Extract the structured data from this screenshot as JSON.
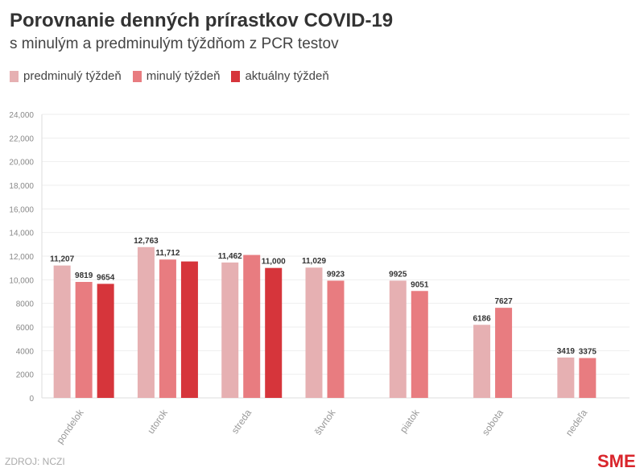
{
  "chart_data": {
    "type": "bar",
    "title": "Porovnanie denných prírastkov COVID-19",
    "subtitle": "s minulým a predminulým týždňom z PCR testov",
    "categories": [
      "pondelok",
      "utorok",
      "streda",
      "štvrtok",
      "piatok",
      "sobota",
      "nedeľa"
    ],
    "series": [
      {
        "name": "predminulý týždeň",
        "color": "#e6b0b2",
        "values": [
          11207,
          12763,
          11462,
          11029,
          9925,
          6186,
          3419
        ],
        "labels": [
          "11,207",
          "12,763",
          "11,462",
          "11,029",
          "9925",
          "6186",
          "3419"
        ]
      },
      {
        "name": "minulý týždeň",
        "color": "#e87c80",
        "values": [
          9819,
          11712,
          12100,
          9923,
          9051,
          7627,
          3375
        ],
        "labels": [
          "9819",
          "11,712",
          "",
          "9923",
          "9051",
          "7627",
          "3375"
        ]
      },
      {
        "name": "aktuálny týždeň",
        "color": "#d6353b",
        "values": [
          9654,
          11550,
          11000,
          null,
          null,
          null,
          null
        ],
        "labels": [
          "9654",
          "",
          "11,000",
          "",
          "",
          "",
          ""
        ]
      }
    ],
    "ylim": [
      0,
      24000
    ],
    "yticks": [
      "0",
      "2000",
      "4000",
      "6000",
      "8000",
      "10,000",
      "12,000",
      "14,000",
      "16,000",
      "18,000",
      "20,000",
      "22,000",
      "24,000"
    ],
    "grid": true,
    "legend": "top-left"
  },
  "source": "ZDROJ: NCZI",
  "logo": "SME"
}
